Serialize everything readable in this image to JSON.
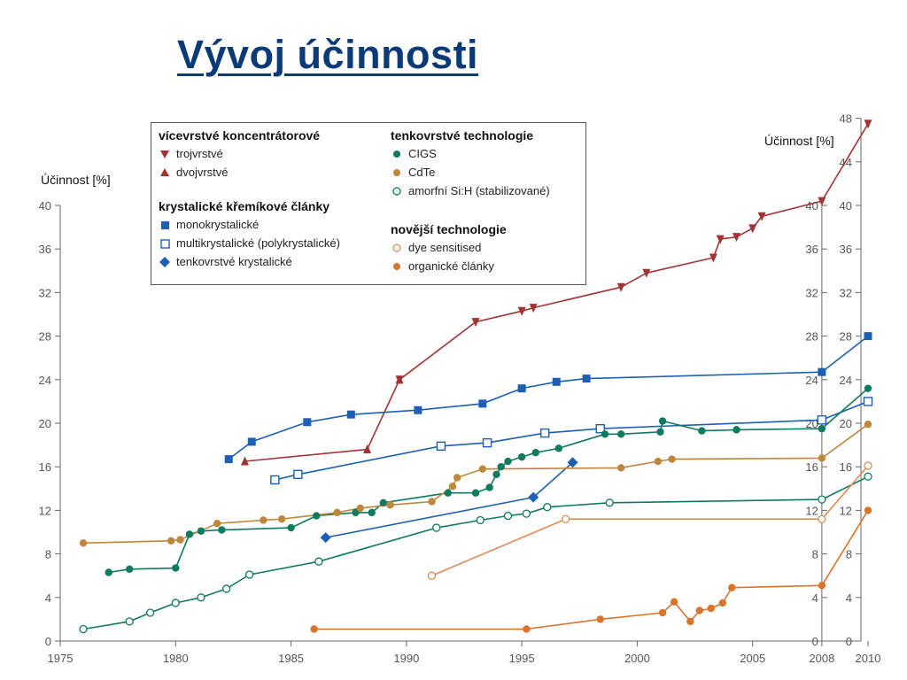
{
  "slide": {
    "title": "Vývoj účinnosti"
  },
  "chart_data": {
    "type": "line",
    "title": "",
    "ylabel_left": "Účinnost [%]",
    "ylabel_right": "Účinnost [%]",
    "xlim": [
      1975,
      2010
    ],
    "ylim_left": [
      0,
      40
    ],
    "ylim_right": [
      0,
      48
    ],
    "x_ticks": [
      "1975",
      "1980",
      "1985",
      "1990",
      "1995",
      "2000",
      "2005",
      "2008",
      "2010"
    ],
    "y_ticks_left": [
      "0",
      "4",
      "8",
      "12",
      "16",
      "20",
      "24",
      "28",
      "32",
      "36",
      "40"
    ],
    "y_ticks_right": [
      "0",
      "4",
      "8",
      "12",
      "16",
      "20",
      "24",
      "28",
      "32",
      "36",
      "40",
      "44",
      "48"
    ],
    "legend": {
      "groups": [
        {
          "title": "vícevrstvé koncentrátorové",
          "items": [
            "trojvrstvé",
            "dvojvrstvé"
          ]
        },
        {
          "title": "krystalické křemíkové články",
          "items": [
            "monokrystalické",
            "multikrystalické (polykrystalické)",
            "tenkovrstvé krystalické"
          ]
        },
        {
          "title": "tenkovrstvé technologie",
          "items": [
            "CIGS",
            "CdTe",
            "amorfní Si:H (stabilizované)"
          ]
        },
        {
          "title": "novější technologie",
          "items": [
            "dye sensitised",
            "organické články"
          ]
        }
      ]
    },
    "series": [
      {
        "name": "trojvrstvé",
        "color": "#a33333",
        "marker": "triangle-down",
        "points": [
          [
            1989.7,
            24.0
          ],
          [
            1993,
            29.3
          ],
          [
            1995,
            30.3
          ],
          [
            1995.5,
            30.6
          ],
          [
            1999.3,
            32.5
          ],
          [
            2000.4,
            33.8
          ],
          [
            2003.3,
            35.2
          ],
          [
            2003.6,
            36.9
          ],
          [
            2004.3,
            37.1
          ],
          [
            2005,
            37.9
          ],
          [
            2005.4,
            39.0
          ],
          [
            2008,
            40.4
          ],
          [
            2010,
            47.5
          ]
        ]
      },
      {
        "name": "dvojvrstvé",
        "color": "#a33333",
        "marker": "triangle-up",
        "points": [
          [
            1983,
            16.5
          ],
          [
            1988.3,
            17.6
          ],
          [
            1989.7,
            24.0
          ]
        ]
      },
      {
        "name": "monokrystalické",
        "color": "#1c5fb5",
        "marker": "square-filled",
        "points": [
          [
            1982.3,
            16.7
          ],
          [
            1983.3,
            18.3
          ],
          [
            1985.7,
            20.1
          ],
          [
            1987.6,
            20.8
          ],
          [
            1990.5,
            21.2
          ],
          [
            1993.3,
            21.8
          ],
          [
            1995,
            23.2
          ],
          [
            1996.5,
            23.8
          ],
          [
            1997.8,
            24.1
          ],
          [
            2008,
            24.7
          ],
          [
            2010,
            28.0
          ]
        ]
      },
      {
        "name": "multikrystalické (polykrystalické)",
        "color": "#1c5fb5",
        "marker": "square-open",
        "points": [
          [
            1984.3,
            14.8
          ],
          [
            1985.3,
            15.3
          ],
          [
            1991.5,
            17.9
          ],
          [
            1993.5,
            18.2
          ],
          [
            1996,
            19.1
          ],
          [
            1998.4,
            19.5
          ],
          [
            2008,
            20.3
          ],
          [
            2010,
            22.0
          ]
        ]
      },
      {
        "name": "tenkovrstvé krystalické",
        "color": "#1c5fb5",
        "marker": "diamond",
        "points": [
          [
            1986.5,
            9.5
          ],
          [
            1995.5,
            13.2
          ],
          [
            1997.2,
            16.4
          ]
        ]
      },
      {
        "name": "CIGS",
        "color": "#0e7a5e",
        "marker": "circle-filled",
        "points": [
          [
            1977.1,
            6.3
          ],
          [
            1978,
            6.6
          ],
          [
            1980,
            6.7
          ],
          [
            1980.6,
            9.8
          ],
          [
            1981.1,
            10.1
          ],
          [
            1982,
            10.2
          ],
          [
            1985,
            10.4
          ],
          [
            1986.1,
            11.5
          ],
          [
            1987.8,
            11.8
          ],
          [
            1988.5,
            11.8
          ],
          [
            1989,
            12.7
          ],
          [
            1991.8,
            13.6
          ],
          [
            1993,
            13.6
          ],
          [
            1993.6,
            14.1
          ],
          [
            1993.9,
            15.3
          ],
          [
            1994.1,
            16.0
          ],
          [
            1994.4,
            16.5
          ],
          [
            1995,
            16.9
          ],
          [
            1995.6,
            17.3
          ],
          [
            1996.6,
            17.7
          ],
          [
            1998.6,
            19.0
          ],
          [
            1999.3,
            19.0
          ],
          [
            2001,
            19.2
          ],
          [
            2001.1,
            20.2
          ],
          [
            2002.8,
            19.3
          ],
          [
            2004.3,
            19.4
          ],
          [
            2008,
            19.5
          ],
          [
            2010,
            23.2
          ]
        ]
      },
      {
        "name": "CdTe",
        "color": "#c0873a",
        "marker": "circle-filled",
        "points": [
          [
            1976,
            9.0
          ],
          [
            1979.8,
            9.2
          ],
          [
            1980.2,
            9.3
          ],
          [
            1981.8,
            10.8
          ],
          [
            1983.8,
            11.1
          ],
          [
            1984.6,
            11.2
          ],
          [
            1987,
            11.8
          ],
          [
            1988,
            12.2
          ],
          [
            1989.3,
            12.5
          ],
          [
            1991.1,
            12.8
          ],
          [
            1992,
            14.2
          ],
          [
            1992.2,
            15.0
          ],
          [
            1993.3,
            15.8
          ],
          [
            1999.3,
            15.9
          ],
          [
            2000.9,
            16.5
          ],
          [
            2001.5,
            16.7
          ],
          [
            2008,
            16.8
          ],
          [
            2010,
            19.9
          ]
        ]
      },
      {
        "name": "amorfní Si:H (stabilizované)",
        "color": "#0e7a5e",
        "marker": "circle-open",
        "points": [
          [
            1976,
            1.1
          ],
          [
            1978,
            1.8
          ],
          [
            1978.9,
            2.6
          ],
          [
            1980,
            3.5
          ],
          [
            1981.1,
            4.0
          ],
          [
            1982.2,
            4.8
          ],
          [
            1983.2,
            6.1
          ],
          [
            1986.2,
            7.3
          ],
          [
            1991.3,
            10.4
          ],
          [
            1993.2,
            11.1
          ],
          [
            1994.4,
            11.5
          ],
          [
            1995.2,
            11.7
          ],
          [
            1996.1,
            12.3
          ],
          [
            1998.8,
            12.7
          ],
          [
            2008,
            13.0
          ],
          [
            2010,
            15.1
          ]
        ]
      },
      {
        "name": "dye sensitised",
        "color": "#e08a55",
        "marker": "circle-open",
        "points": [
          [
            1991.1,
            6.0
          ],
          [
            1996.9,
            11.2
          ],
          [
            2008,
            11.2
          ],
          [
            2010,
            16.1
          ]
        ]
      },
      {
        "name": "organické články",
        "color": "#d9752a",
        "marker": "circle-filled",
        "points": [
          [
            1986,
            1.1
          ],
          [
            1995.2,
            1.1
          ],
          [
            1998.4,
            2.0
          ],
          [
            2001.1,
            2.6
          ],
          [
            2001.6,
            3.6
          ],
          [
            2002.3,
            1.8
          ],
          [
            2002.7,
            2.8
          ],
          [
            2003.2,
            3.0
          ],
          [
            2003.7,
            3.5
          ],
          [
            2004.1,
            4.9
          ],
          [
            2008,
            5.1
          ],
          [
            2010,
            12.0
          ]
        ]
      }
    ]
  }
}
